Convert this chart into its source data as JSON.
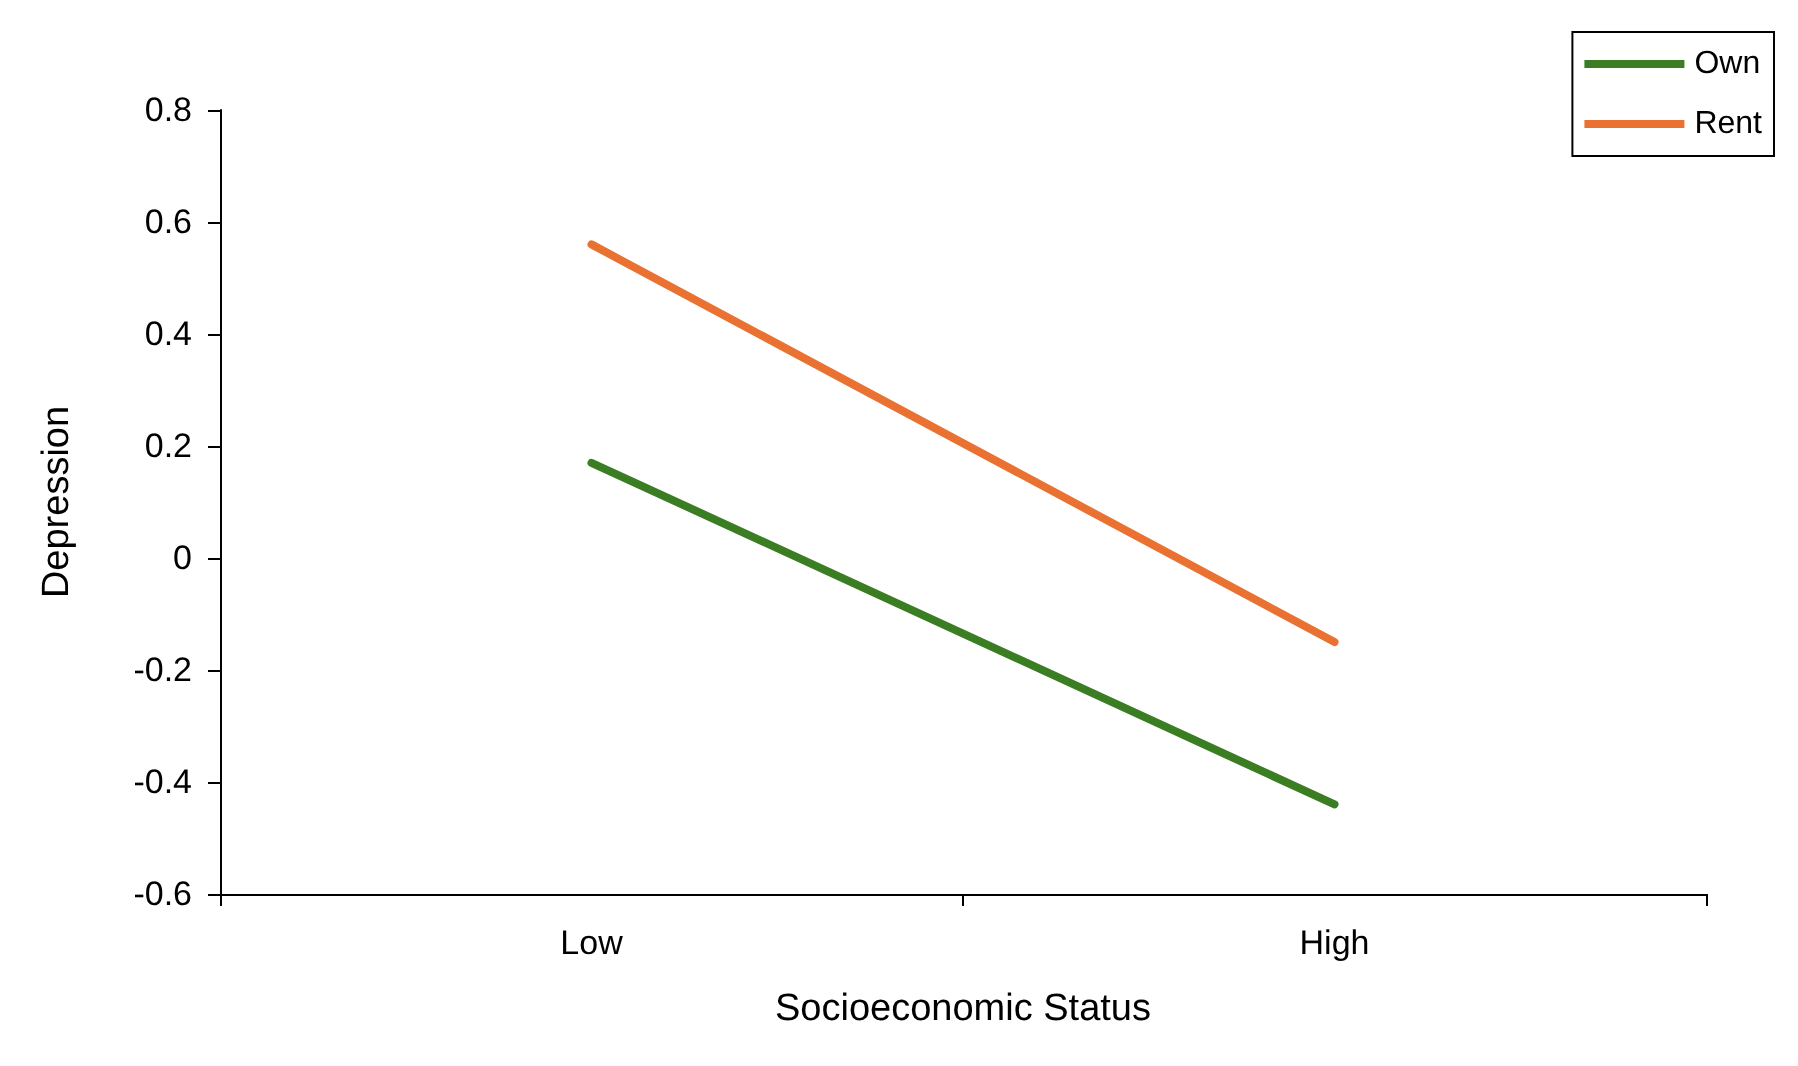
{
  "chart_data": {
    "type": "line",
    "xlabel": "Socioeconomic Status",
    "ylabel": "Depression",
    "categories": [
      "Low",
      "High"
    ],
    "series": [
      {
        "name": "Own",
        "color": "#3a7d22",
        "values": [
          0.17,
          -0.44
        ]
      },
      {
        "name": "Rent",
        "color": "#e97132",
        "values": [
          0.56,
          -0.15
        ]
      }
    ],
    "ylim": [
      -0.6,
      0.8
    ],
    "yticks": [
      -0.6,
      -0.4,
      -0.2,
      0,
      0.2,
      0.4,
      0.6,
      0.8
    ],
    "grid": false,
    "legend": "top right",
    "marker": "none",
    "line_style": "solid"
  }
}
